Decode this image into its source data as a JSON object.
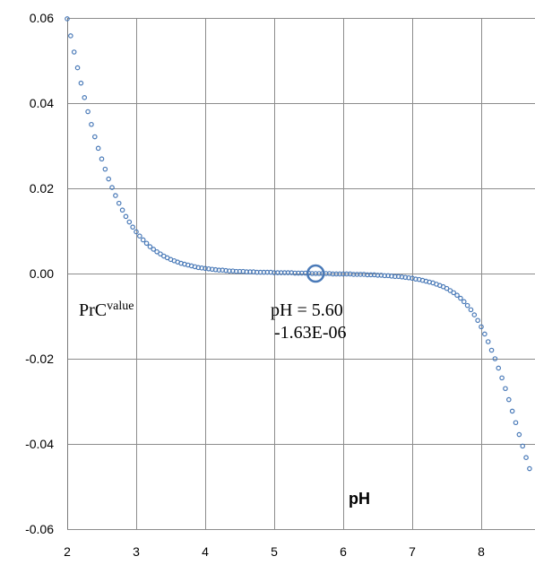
{
  "chart_data": {
    "type": "scatter",
    "xlabel": "pH",
    "xlim": [
      2,
      8.9
    ],
    "ylim": [
      -0.06,
      0.06
    ],
    "x_ticks": [
      "2",
      "3",
      "4",
      "5",
      "6",
      "7",
      "8"
    ],
    "y_ticks": [
      "0.06",
      "0.04",
      "0.02",
      "0.00",
      "-0.02",
      "-0.04",
      "-0.06"
    ],
    "grid": true,
    "marker_color": "#4a7ab8",
    "series_label": {
      "base": "PrC",
      "superscript": "value"
    },
    "highlight": {
      "x": 5.6,
      "y": 0,
      "label_line1": "pH = 5.60",
      "label_line2": "-1.63E-06"
    },
    "points": [
      [
        2.0,
        0.0598
      ],
      [
        2.05,
        0.0558
      ],
      [
        2.1,
        0.052
      ],
      [
        2.15,
        0.0483
      ],
      [
        2.2,
        0.0447
      ],
      [
        2.25,
        0.0413
      ],
      [
        2.3,
        0.038
      ],
      [
        2.35,
        0.035
      ],
      [
        2.4,
        0.0321
      ],
      [
        2.45,
        0.0294
      ],
      [
        2.5,
        0.0269
      ],
      [
        2.55,
        0.0245
      ],
      [
        2.6,
        0.0222
      ],
      [
        2.65,
        0.0202
      ],
      [
        2.7,
        0.0183
      ],
      [
        2.75,
        0.0165
      ],
      [
        2.8,
        0.0149
      ],
      [
        2.85,
        0.0134
      ],
      [
        2.9,
        0.0121
      ],
      [
        2.95,
        0.0109
      ],
      [
        3.0,
        0.0098
      ],
      [
        3.05,
        0.0088
      ],
      [
        3.1,
        0.0079
      ],
      [
        3.15,
        0.0071
      ],
      [
        3.2,
        0.0063
      ],
      [
        3.25,
        0.0057
      ],
      [
        3.3,
        0.0051
      ],
      [
        3.35,
        0.0046
      ],
      [
        3.4,
        0.0041
      ],
      [
        3.45,
        0.0037
      ],
      [
        3.5,
        0.0033
      ],
      [
        3.55,
        0.003
      ],
      [
        3.6,
        0.0027
      ],
      [
        3.65,
        0.0024
      ],
      [
        3.7,
        0.0022
      ],
      [
        3.75,
        0.002
      ],
      [
        3.8,
        0.0018
      ],
      [
        3.85,
        0.0016
      ],
      [
        3.9,
        0.0014
      ],
      [
        3.95,
        0.0013
      ],
      [
        4.0,
        0.0012
      ],
      [
        4.05,
        0.0011
      ],
      [
        4.1,
        0.001
      ],
      [
        4.15,
        0.0009
      ],
      [
        4.2,
        0.0008
      ],
      [
        4.25,
        0.0008
      ],
      [
        4.3,
        0.0007
      ],
      [
        4.35,
        0.0006
      ],
      [
        4.4,
        0.0006
      ],
      [
        4.45,
        0.0005
      ],
      [
        4.5,
        0.0005
      ],
      [
        4.55,
        0.0005
      ],
      [
        4.6,
        0.0004
      ],
      [
        4.65,
        0.0004
      ],
      [
        4.7,
        0.0004
      ],
      [
        4.75,
        0.0003
      ],
      [
        4.8,
        0.0003
      ],
      [
        4.85,
        0.0003
      ],
      [
        4.9,
        0.0003
      ],
      [
        4.95,
        0.0003
      ],
      [
        5.0,
        0.0002
      ],
      [
        5.05,
        0.0002
      ],
      [
        5.1,
        0.0002
      ],
      [
        5.15,
        0.0002
      ],
      [
        5.2,
        0.0002
      ],
      [
        5.25,
        0.0002
      ],
      [
        5.3,
        0.0001
      ],
      [
        5.35,
        0.0001
      ],
      [
        5.4,
        0.0001
      ],
      [
        5.45,
        0.0001
      ],
      [
        5.5,
        0.0001
      ],
      [
        5.55,
        0.0
      ],
      [
        5.6,
        0.0
      ],
      [
        5.65,
        0.0
      ],
      [
        5.7,
        0.0
      ],
      [
        5.75,
        0.0
      ],
      [
        5.8,
        0.0
      ],
      [
        5.85,
        -0.0001
      ],
      [
        5.9,
        -0.0001
      ],
      [
        5.95,
        -0.0001
      ],
      [
        6.0,
        -0.0001
      ],
      [
        6.05,
        -0.0001
      ],
      [
        6.1,
        -0.0001
      ],
      [
        6.15,
        -0.0002
      ],
      [
        6.2,
        -0.0002
      ],
      [
        6.25,
        -0.0002
      ],
      [
        6.3,
        -0.0002
      ],
      [
        6.35,
        -0.0003
      ],
      [
        6.4,
        -0.0003
      ],
      [
        6.45,
        -0.0003
      ],
      [
        6.5,
        -0.0004
      ],
      [
        6.55,
        -0.0004
      ],
      [
        6.6,
        -0.0005
      ],
      [
        6.65,
        -0.0005
      ],
      [
        6.7,
        -0.0006
      ],
      [
        6.75,
        -0.0007
      ],
      [
        6.8,
        -0.0007
      ],
      [
        6.85,
        -0.0008
      ],
      [
        6.9,
        -0.0009
      ],
      [
        6.95,
        -0.001
      ],
      [
        7.0,
        -0.0011
      ],
      [
        7.05,
        -0.0013
      ],
      [
        7.1,
        -0.0014
      ],
      [
        7.15,
        -0.0016
      ],
      [
        7.2,
        -0.0018
      ],
      [
        7.25,
        -0.002
      ],
      [
        7.3,
        -0.0022
      ],
      [
        7.35,
        -0.0025
      ],
      [
        7.4,
        -0.0028
      ],
      [
        7.45,
        -0.0031
      ],
      [
        7.5,
        -0.0035
      ],
      [
        7.55,
        -0.004
      ],
      [
        7.6,
        -0.0045
      ],
      [
        7.65,
        -0.0051
      ],
      [
        7.7,
        -0.0058
      ],
      [
        7.75,
        -0.0066
      ],
      [
        7.8,
        -0.0075
      ],
      [
        7.85,
        -0.0085
      ],
      [
        7.9,
        -0.0097
      ],
      [
        7.95,
        -0.011
      ],
      [
        8.0,
        -0.0125
      ],
      [
        8.05,
        -0.0142
      ],
      [
        8.1,
        -0.016
      ],
      [
        8.15,
        -0.018
      ],
      [
        8.2,
        -0.02
      ],
      [
        8.25,
        -0.0222
      ],
      [
        8.3,
        -0.0245
      ],
      [
        8.35,
        -0.027
      ],
      [
        8.4,
        -0.0296
      ],
      [
        8.45,
        -0.0323
      ],
      [
        8.5,
        -0.035
      ],
      [
        8.55,
        -0.0378
      ],
      [
        8.6,
        -0.0405
      ],
      [
        8.65,
        -0.0432
      ],
      [
        8.7,
        -0.0458
      ]
    ]
  }
}
